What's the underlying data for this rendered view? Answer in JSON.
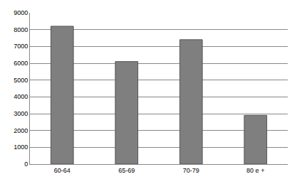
{
  "chart_data": {
    "type": "bar",
    "categories": [
      "60-64",
      "65-69",
      "70-79",
      "80 e +"
    ],
    "values": [
      8200,
      6100,
      7400,
      2900
    ],
    "color": "#7f7f7f",
    "ylim": [
      0,
      9000
    ],
    "yticks": [
      0,
      1000,
      2000,
      3000,
      4000,
      5000,
      6000,
      7000,
      8000,
      9000
    ],
    "grid": true
  }
}
